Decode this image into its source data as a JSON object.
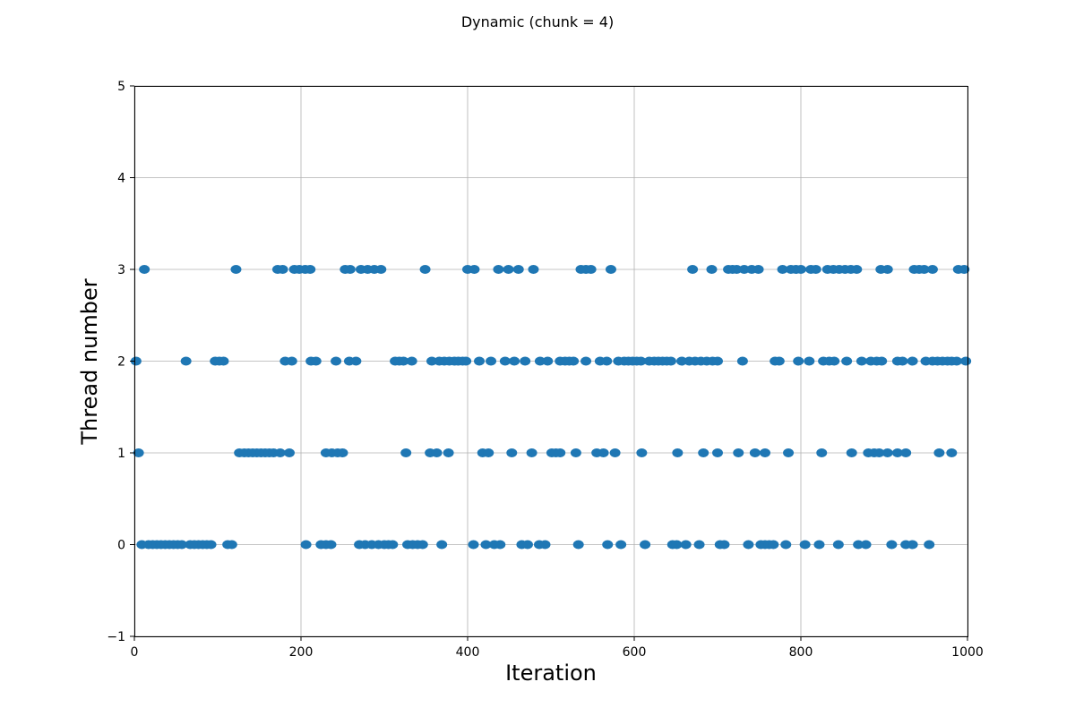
{
  "chart_data": {
    "type": "scatter",
    "title": "Dynamic (chunk = 4)",
    "xlabel": "Iteration",
    "ylabel": "Thread number",
    "xlim": [
      0,
      1000
    ],
    "ylim": [
      -1,
      5
    ],
    "xticks": [
      0,
      200,
      400,
      600,
      800,
      1000
    ],
    "yticks": [
      -1,
      0,
      1,
      2,
      3,
      4,
      5
    ],
    "xtick_labels": [
      "0",
      "200",
      "400",
      "600",
      "800",
      "1000"
    ],
    "ytick_labels": [
      "−1",
      "0",
      "1",
      "2",
      "3",
      "4",
      "5"
    ],
    "grid": true,
    "marker_color": "#1f77b4",
    "series": [
      {
        "values": [
          {
            "x": 12,
            "y": 3
          },
          {
            "x": 122,
            "y": 3
          },
          {
            "x": 172,
            "y": 3
          },
          {
            "x": 178,
            "y": 3
          },
          {
            "x": 192,
            "y": 3
          },
          {
            "x": 198,
            "y": 3
          },
          {
            "x": 205,
            "y": 3
          },
          {
            "x": 211,
            "y": 3
          },
          {
            "x": 253,
            "y": 3
          },
          {
            "x": 259,
            "y": 3
          },
          {
            "x": 272,
            "y": 3
          },
          {
            "x": 280,
            "y": 3
          },
          {
            "x": 288,
            "y": 3
          },
          {
            "x": 296,
            "y": 3
          },
          {
            "x": 349,
            "y": 3
          },
          {
            "x": 400,
            "y": 3
          },
          {
            "x": 408,
            "y": 3
          },
          {
            "x": 437,
            "y": 3
          },
          {
            "x": 449,
            "y": 3
          },
          {
            "x": 461,
            "y": 3
          },
          {
            "x": 479,
            "y": 3
          },
          {
            "x": 536,
            "y": 3
          },
          {
            "x": 542,
            "y": 3
          },
          {
            "x": 548,
            "y": 3
          },
          {
            "x": 572,
            "y": 3
          },
          {
            "x": 670,
            "y": 3
          },
          {
            "x": 693,
            "y": 3
          },
          {
            "x": 713,
            "y": 3
          },
          {
            "x": 718,
            "y": 3
          },
          {
            "x": 723,
            "y": 3
          },
          {
            "x": 732,
            "y": 3
          },
          {
            "x": 741,
            "y": 3
          },
          {
            "x": 749,
            "y": 3
          },
          {
            "x": 778,
            "y": 3
          },
          {
            "x": 788,
            "y": 3
          },
          {
            "x": 794,
            "y": 3
          },
          {
            "x": 800,
            "y": 3
          },
          {
            "x": 812,
            "y": 3
          },
          {
            "x": 818,
            "y": 3
          },
          {
            "x": 832,
            "y": 3
          },
          {
            "x": 839,
            "y": 3
          },
          {
            "x": 846,
            "y": 3
          },
          {
            "x": 853,
            "y": 3
          },
          {
            "x": 860,
            "y": 3
          },
          {
            "x": 867,
            "y": 3
          },
          {
            "x": 896,
            "y": 3
          },
          {
            "x": 904,
            "y": 3
          },
          {
            "x": 936,
            "y": 3
          },
          {
            "x": 942,
            "y": 3
          },
          {
            "x": 948,
            "y": 3
          },
          {
            "x": 958,
            "y": 3
          },
          {
            "x": 989,
            "y": 3
          },
          {
            "x": 996,
            "y": 3
          },
          {
            "x": 2,
            "y": 2
          },
          {
            "x": 62,
            "y": 2
          },
          {
            "x": 97,
            "y": 2
          },
          {
            "x": 102,
            "y": 2
          },
          {
            "x": 107,
            "y": 2
          },
          {
            "x": 181,
            "y": 2
          },
          {
            "x": 189,
            "y": 2
          },
          {
            "x": 212,
            "y": 2
          },
          {
            "x": 218,
            "y": 2
          },
          {
            "x": 242,
            "y": 2
          },
          {
            "x": 258,
            "y": 2
          },
          {
            "x": 266,
            "y": 2
          },
          {
            "x": 313,
            "y": 2
          },
          {
            "x": 318,
            "y": 2
          },
          {
            "x": 323,
            "y": 2
          },
          {
            "x": 333,
            "y": 2
          },
          {
            "x": 357,
            "y": 2
          },
          {
            "x": 366,
            "y": 2
          },
          {
            "x": 372,
            "y": 2
          },
          {
            "x": 378,
            "y": 2
          },
          {
            "x": 384,
            "y": 2
          },
          {
            "x": 389,
            "y": 2
          },
          {
            "x": 394,
            "y": 2
          },
          {
            "x": 398,
            "y": 2
          },
          {
            "x": 414,
            "y": 2
          },
          {
            "x": 428,
            "y": 2
          },
          {
            "x": 445,
            "y": 2
          },
          {
            "x": 456,
            "y": 2
          },
          {
            "x": 469,
            "y": 2
          },
          {
            "x": 487,
            "y": 2
          },
          {
            "x": 496,
            "y": 2
          },
          {
            "x": 511,
            "y": 2
          },
          {
            "x": 517,
            "y": 2
          },
          {
            "x": 522,
            "y": 2
          },
          {
            "x": 527,
            "y": 2
          },
          {
            "x": 542,
            "y": 2
          },
          {
            "x": 559,
            "y": 2
          },
          {
            "x": 567,
            "y": 2
          },
          {
            "x": 581,
            "y": 2
          },
          {
            "x": 588,
            "y": 2
          },
          {
            "x": 593,
            "y": 2
          },
          {
            "x": 598,
            "y": 2
          },
          {
            "x": 603,
            "y": 2
          },
          {
            "x": 608,
            "y": 2
          },
          {
            "x": 618,
            "y": 2
          },
          {
            "x": 624,
            "y": 2
          },
          {
            "x": 629,
            "y": 2
          },
          {
            "x": 634,
            "y": 2
          },
          {
            "x": 639,
            "y": 2
          },
          {
            "x": 644,
            "y": 2
          },
          {
            "x": 657,
            "y": 2
          },
          {
            "x": 666,
            "y": 2
          },
          {
            "x": 673,
            "y": 2
          },
          {
            "x": 680,
            "y": 2
          },
          {
            "x": 687,
            "y": 2
          },
          {
            "x": 694,
            "y": 2
          },
          {
            "x": 700,
            "y": 2
          },
          {
            "x": 730,
            "y": 2
          },
          {
            "x": 769,
            "y": 2
          },
          {
            "x": 774,
            "y": 2
          },
          {
            "x": 797,
            "y": 2
          },
          {
            "x": 810,
            "y": 2
          },
          {
            "x": 827,
            "y": 2
          },
          {
            "x": 834,
            "y": 2
          },
          {
            "x": 840,
            "y": 2
          },
          {
            "x": 855,
            "y": 2
          },
          {
            "x": 873,
            "y": 2
          },
          {
            "x": 884,
            "y": 2
          },
          {
            "x": 891,
            "y": 2
          },
          {
            "x": 897,
            "y": 2
          },
          {
            "x": 916,
            "y": 2
          },
          {
            "x": 922,
            "y": 2
          },
          {
            "x": 934,
            "y": 2
          },
          {
            "x": 950,
            "y": 2
          },
          {
            "x": 958,
            "y": 2
          },
          {
            "x": 964,
            "y": 2
          },
          {
            "x": 970,
            "y": 2
          },
          {
            "x": 976,
            "y": 2
          },
          {
            "x": 981,
            "y": 2
          },
          {
            "x": 987,
            "y": 2
          },
          {
            "x": 998,
            "y": 2
          },
          {
            "x": 5,
            "y": 1
          },
          {
            "x": 126,
            "y": 1
          },
          {
            "x": 132,
            "y": 1
          },
          {
            "x": 137,
            "y": 1
          },
          {
            "x": 142,
            "y": 1
          },
          {
            "x": 147,
            "y": 1
          },
          {
            "x": 152,
            "y": 1
          },
          {
            "x": 157,
            "y": 1
          },
          {
            "x": 162,
            "y": 1
          },
          {
            "x": 167,
            "y": 1
          },
          {
            "x": 175,
            "y": 1
          },
          {
            "x": 186,
            "y": 1
          },
          {
            "x": 230,
            "y": 1
          },
          {
            "x": 237,
            "y": 1
          },
          {
            "x": 244,
            "y": 1
          },
          {
            "x": 250,
            "y": 1
          },
          {
            "x": 326,
            "y": 1
          },
          {
            "x": 355,
            "y": 1
          },
          {
            "x": 363,
            "y": 1
          },
          {
            "x": 377,
            "y": 1
          },
          {
            "x": 418,
            "y": 1
          },
          {
            "x": 425,
            "y": 1
          },
          {
            "x": 453,
            "y": 1
          },
          {
            "x": 477,
            "y": 1
          },
          {
            "x": 501,
            "y": 1
          },
          {
            "x": 506,
            "y": 1
          },
          {
            "x": 511,
            "y": 1
          },
          {
            "x": 530,
            "y": 1
          },
          {
            "x": 555,
            "y": 1
          },
          {
            "x": 563,
            "y": 1
          },
          {
            "x": 577,
            "y": 1
          },
          {
            "x": 609,
            "y": 1
          },
          {
            "x": 652,
            "y": 1
          },
          {
            "x": 683,
            "y": 1
          },
          {
            "x": 700,
            "y": 1
          },
          {
            "x": 725,
            "y": 1
          },
          {
            "x": 745,
            "y": 1
          },
          {
            "x": 757,
            "y": 1
          },
          {
            "x": 785,
            "y": 1
          },
          {
            "x": 825,
            "y": 1
          },
          {
            "x": 861,
            "y": 1
          },
          {
            "x": 881,
            "y": 1
          },
          {
            "x": 888,
            "y": 1
          },
          {
            "x": 894,
            "y": 1
          },
          {
            "x": 904,
            "y": 1
          },
          {
            "x": 916,
            "y": 1
          },
          {
            "x": 926,
            "y": 1
          },
          {
            "x": 966,
            "y": 1
          },
          {
            "x": 981,
            "y": 1
          },
          {
            "x": 9,
            "y": 0
          },
          {
            "x": 17,
            "y": 0
          },
          {
            "x": 22,
            "y": 0
          },
          {
            "x": 27,
            "y": 0
          },
          {
            "x": 32,
            "y": 0
          },
          {
            "x": 37,
            "y": 0
          },
          {
            "x": 42,
            "y": 0
          },
          {
            "x": 47,
            "y": 0
          },
          {
            "x": 52,
            "y": 0
          },
          {
            "x": 57,
            "y": 0
          },
          {
            "x": 67,
            "y": 0
          },
          {
            "x": 72,
            "y": 0
          },
          {
            "x": 77,
            "y": 0
          },
          {
            "x": 82,
            "y": 0
          },
          {
            "x": 87,
            "y": 0
          },
          {
            "x": 92,
            "y": 0
          },
          {
            "x": 112,
            "y": 0
          },
          {
            "x": 117,
            "y": 0
          },
          {
            "x": 206,
            "y": 0
          },
          {
            "x": 224,
            "y": 0
          },
          {
            "x": 230,
            "y": 0
          },
          {
            "x": 236,
            "y": 0
          },
          {
            "x": 270,
            "y": 0
          },
          {
            "x": 277,
            "y": 0
          },
          {
            "x": 285,
            "y": 0
          },
          {
            "x": 293,
            "y": 0
          },
          {
            "x": 300,
            "y": 0
          },
          {
            "x": 305,
            "y": 0
          },
          {
            "x": 310,
            "y": 0
          },
          {
            "x": 328,
            "y": 0
          },
          {
            "x": 334,
            "y": 0
          },
          {
            "x": 340,
            "y": 0
          },
          {
            "x": 346,
            "y": 0
          },
          {
            "x": 369,
            "y": 0
          },
          {
            "x": 407,
            "y": 0
          },
          {
            "x": 422,
            "y": 0
          },
          {
            "x": 432,
            "y": 0
          },
          {
            "x": 439,
            "y": 0
          },
          {
            "x": 465,
            "y": 0
          },
          {
            "x": 472,
            "y": 0
          },
          {
            "x": 486,
            "y": 0
          },
          {
            "x": 493,
            "y": 0
          },
          {
            "x": 533,
            "y": 0
          },
          {
            "x": 568,
            "y": 0
          },
          {
            "x": 584,
            "y": 0
          },
          {
            "x": 613,
            "y": 0
          },
          {
            "x": 646,
            "y": 0
          },
          {
            "x": 651,
            "y": 0
          },
          {
            "x": 662,
            "y": 0
          },
          {
            "x": 678,
            "y": 0
          },
          {
            "x": 703,
            "y": 0
          },
          {
            "x": 708,
            "y": 0
          },
          {
            "x": 737,
            "y": 0
          },
          {
            "x": 752,
            "y": 0
          },
          {
            "x": 757,
            "y": 0
          },
          {
            "x": 762,
            "y": 0
          },
          {
            "x": 767,
            "y": 0
          },
          {
            "x": 782,
            "y": 0
          },
          {
            "x": 805,
            "y": 0
          },
          {
            "x": 822,
            "y": 0
          },
          {
            "x": 845,
            "y": 0
          },
          {
            "x": 869,
            "y": 0
          },
          {
            "x": 878,
            "y": 0
          },
          {
            "x": 909,
            "y": 0
          },
          {
            "x": 926,
            "y": 0
          },
          {
            "x": 934,
            "y": 0
          },
          {
            "x": 954,
            "y": 0
          }
        ]
      }
    ]
  }
}
